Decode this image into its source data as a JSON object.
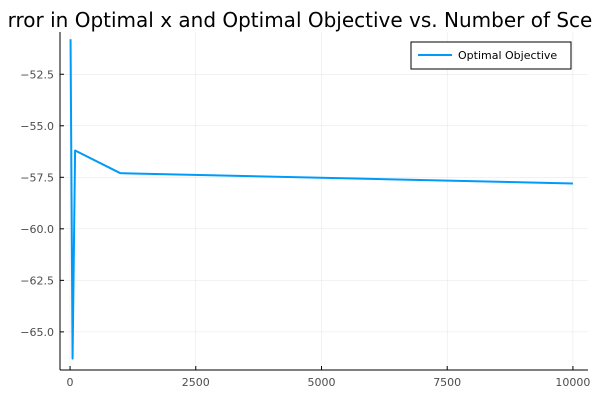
{
  "chart_data": {
    "type": "line",
    "title": "rror in Optimal x and Optimal Objective vs. Number of Sce",
    "xlabel": "",
    "ylabel": "",
    "xlim": [
      -200,
      10300
    ],
    "ylim": [
      -66.85,
      -50.45
    ],
    "xticks": [
      0,
      2500,
      5000,
      7500,
      10000
    ],
    "xtick_labels": [
      "0",
      "2500",
      "5000",
      "7500",
      "10000"
    ],
    "yticks": [
      -52.5,
      -55.0,
      -57.5,
      -60.0,
      -62.5,
      -65.0
    ],
    "ytick_labels": [
      "−52.5",
      "−55.0",
      "−57.5",
      "−60.0",
      "−62.5",
      "−65.0"
    ],
    "grid": true,
    "legend_position": "top-right",
    "series": [
      {
        "name": "Optimal Objective",
        "color": "#009af9",
        "x": [
          10,
          50,
          100,
          1000,
          10000
        ],
        "y": [
          -50.8,
          -66.3,
          -56.2,
          -57.3,
          -57.8
        ]
      }
    ]
  }
}
